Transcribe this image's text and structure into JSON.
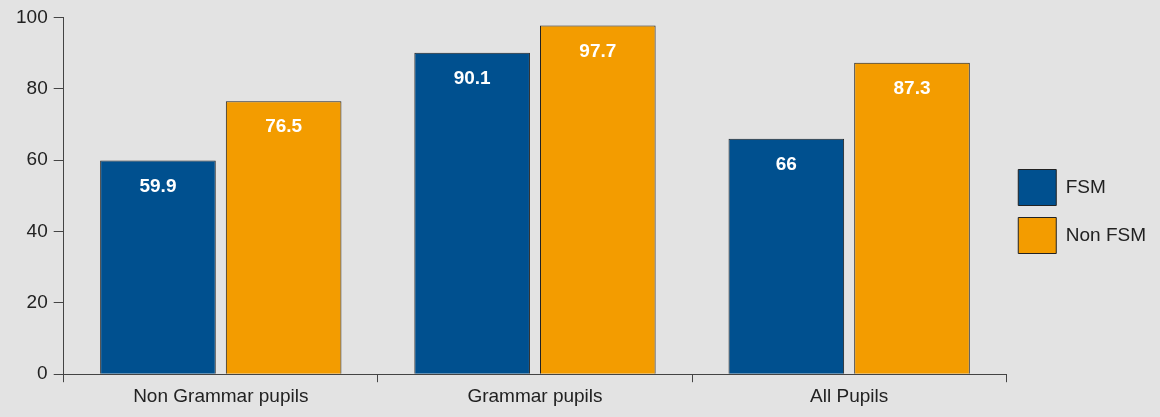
{
  "chart_data": {
    "type": "bar",
    "categories": [
      "Non Grammar pupils",
      "Grammar pupils",
      "All Pupils"
    ],
    "series": [
      {
        "name": "FSM",
        "color": "#00508f",
        "values": [
          59.9,
          90.1,
          66
        ]
      },
      {
        "name": "Non FSM",
        "color": "#f39c00",
        "values": [
          76.5,
          97.7,
          87.3
        ]
      }
    ],
    "ylim": [
      0,
      100
    ],
    "yticks": [
      0,
      20,
      40,
      60,
      80,
      100
    ],
    "grid": false,
    "legend": "right",
    "data_labels": true
  }
}
